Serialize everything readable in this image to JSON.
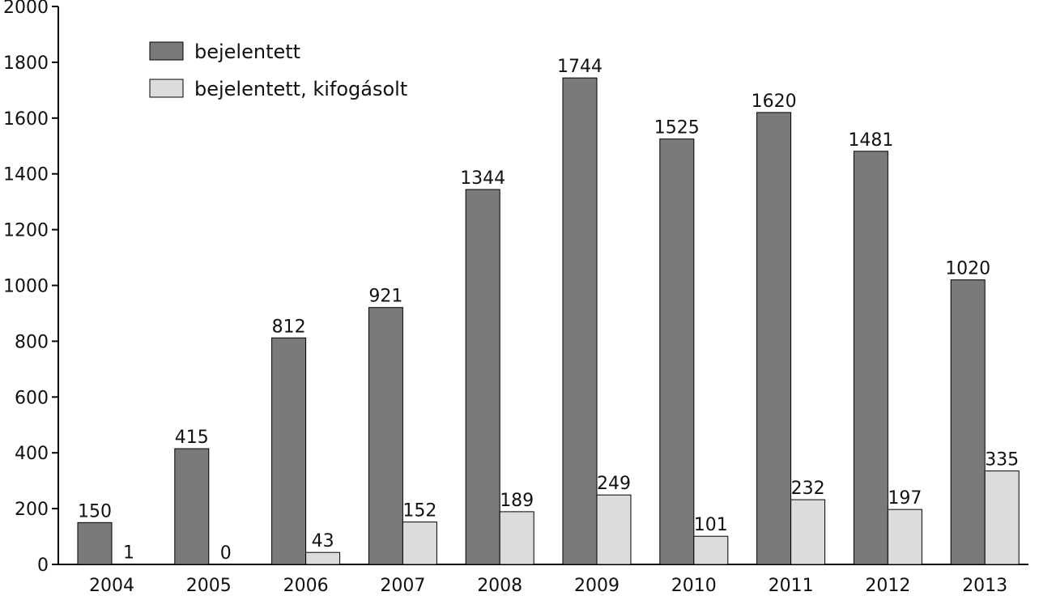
{
  "chart_data": {
    "type": "bar",
    "categories": [
      "2004",
      "2005",
      "2006",
      "2007",
      "2008",
      "2009",
      "2010",
      "2011",
      "2012",
      "2013"
    ],
    "series": [
      {
        "name": "bejelentett",
        "values": [
          150,
          415,
          812,
          921,
          1344,
          1744,
          1525,
          1620,
          1481,
          1020
        ],
        "color": "#7a7a7a"
      },
      {
        "name": "bejelentett, kifogásolt",
        "values": [
          1,
          0,
          43,
          152,
          189,
          249,
          101,
          232,
          197,
          335
        ],
        "color": "#dcdcdc"
      }
    ],
    "ylim": [
      0,
      2000
    ],
    "yticks": [
      0,
      200,
      400,
      600,
      800,
      1000,
      1200,
      1400,
      1600,
      1800,
      2000
    ],
    "grid": false,
    "legend_position": "top-left",
    "title": "",
    "xlabel": "",
    "ylabel": ""
  }
}
